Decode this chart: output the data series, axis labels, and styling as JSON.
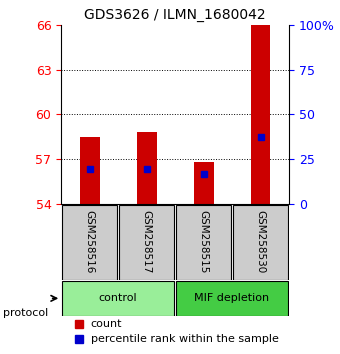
{
  "title": "GDS3626 / ILMN_1680042",
  "samples": [
    "GSM258516",
    "GSM258517",
    "GSM258515",
    "GSM258530"
  ],
  "groups": [
    "control",
    "control",
    "MIF depletion",
    "MIF depletion"
  ],
  "bar_bottom": 54,
  "bar_tops": [
    58.5,
    58.8,
    56.8,
    66.2
  ],
  "percentile_values": [
    56.3,
    56.3,
    56.0,
    58.5
  ],
  "ylim": [
    54,
    66
  ],
  "y2lim": [
    0,
    100
  ],
  "yticks": [
    54,
    57,
    60,
    63,
    66
  ],
  "y2ticks": [
    0,
    25,
    50,
    75,
    100
  ],
  "y2tick_labels": [
    "0",
    "25",
    "50",
    "75",
    "100%"
  ],
  "bar_color": "#cc0000",
  "marker_color": "#0000cc",
  "control_color": "#99ee99",
  "mif_color": "#44cc44",
  "sample_box_color": "#cccccc",
  "bar_width": 0.35
}
